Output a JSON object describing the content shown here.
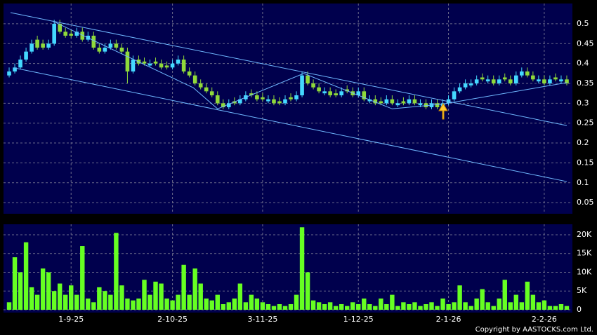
{
  "chart_data": [
    {
      "type": "candlestick",
      "up_color": "#44d8ff",
      "down_color": "#8fd93a",
      "line_color": "#6fb8ff",
      "background": "#00004d",
      "grid": true,
      "xlim": [
        -1,
        100
      ],
      "xticks": [
        11,
        29,
        45,
        62,
        78,
        95
      ],
      "ylim": [
        0.022,
        0.551
      ],
      "yticks": [
        0.05,
        0.1,
        0.15,
        0.2,
        0.25,
        0.3,
        0.35,
        0.4,
        0.45,
        0.5
      ],
      "open": [
        0.37,
        0.38,
        0.39,
        0.41,
        0.43,
        0.46,
        0.45,
        0.44,
        0.45,
        0.5,
        0.48,
        0.475,
        0.47,
        0.48,
        0.46,
        0.47,
        0.44,
        0.43,
        0.44,
        0.45,
        0.44,
        0.43,
        0.38,
        0.41,
        0.405,
        0.395,
        0.405,
        0.4,
        0.395,
        0.39,
        0.4,
        0.41,
        0.38,
        0.37,
        0.35,
        0.34,
        0.33,
        0.32,
        0.3,
        0.29,
        0.305,
        0.3,
        0.31,
        0.325,
        0.32,
        0.315,
        0.305,
        0.31,
        0.305,
        0.3,
        0.315,
        0.31,
        0.32,
        0.37,
        0.35,
        0.34,
        0.325,
        0.33,
        0.325,
        0.32,
        0.335,
        0.33,
        0.32,
        0.33,
        0.305,
        0.31,
        0.305,
        0.3,
        0.31,
        0.295,
        0.305,
        0.3,
        0.31,
        0.295,
        0.3,
        0.29,
        0.3,
        0.29,
        0.3,
        0.31,
        0.33,
        0.34,
        0.345,
        0.35,
        0.365,
        0.355,
        0.36,
        0.35,
        0.365,
        0.36,
        0.35,
        0.37,
        0.38,
        0.37,
        0.355,
        0.36,
        0.35,
        0.365,
        0.355,
        0.36
      ],
      "high": [
        0.39,
        0.4,
        0.42,
        0.44,
        0.46,
        0.47,
        0.46,
        0.46,
        0.51,
        0.51,
        0.49,
        0.485,
        0.49,
        0.49,
        0.48,
        0.48,
        0.45,
        0.45,
        0.46,
        0.46,
        0.45,
        0.44,
        0.42,
        0.42,
        0.415,
        0.41,
        0.415,
        0.41,
        0.405,
        0.41,
        0.42,
        0.42,
        0.39,
        0.38,
        0.36,
        0.35,
        0.34,
        0.33,
        0.31,
        0.31,
        0.315,
        0.32,
        0.33,
        0.335,
        0.33,
        0.325,
        0.32,
        0.32,
        0.315,
        0.32,
        0.325,
        0.33,
        0.38,
        0.38,
        0.36,
        0.35,
        0.34,
        0.34,
        0.335,
        0.34,
        0.345,
        0.34,
        0.34,
        0.34,
        0.32,
        0.32,
        0.315,
        0.32,
        0.32,
        0.31,
        0.315,
        0.32,
        0.32,
        0.31,
        0.31,
        0.31,
        0.31,
        0.31,
        0.32,
        0.34,
        0.35,
        0.36,
        0.36,
        0.37,
        0.375,
        0.37,
        0.37,
        0.37,
        0.375,
        0.37,
        0.38,
        0.39,
        0.39,
        0.38,
        0.37,
        0.37,
        0.37,
        0.375,
        0.37,
        0.37
      ],
      "low": [
        0.365,
        0.375,
        0.385,
        0.405,
        0.425,
        0.435,
        0.435,
        0.435,
        0.445,
        0.475,
        0.465,
        0.465,
        0.465,
        0.455,
        0.455,
        0.435,
        0.425,
        0.425,
        0.435,
        0.435,
        0.425,
        0.35,
        0.375,
        0.395,
        0.395,
        0.39,
        0.395,
        0.385,
        0.385,
        0.385,
        0.395,
        0.375,
        0.365,
        0.345,
        0.335,
        0.325,
        0.315,
        0.295,
        0.285,
        0.285,
        0.295,
        0.295,
        0.305,
        0.315,
        0.305,
        0.305,
        0.3,
        0.295,
        0.295,
        0.295,
        0.305,
        0.305,
        0.315,
        0.345,
        0.335,
        0.325,
        0.32,
        0.315,
        0.315,
        0.315,
        0.325,
        0.315,
        0.315,
        0.305,
        0.3,
        0.295,
        0.295,
        0.295,
        0.295,
        0.29,
        0.295,
        0.295,
        0.295,
        0.29,
        0.285,
        0.285,
        0.285,
        0.285,
        0.295,
        0.305,
        0.325,
        0.335,
        0.34,
        0.345,
        0.355,
        0.35,
        0.345,
        0.345,
        0.355,
        0.345,
        0.345,
        0.365,
        0.365,
        0.355,
        0.35,
        0.345,
        0.345,
        0.355,
        0.35,
        0.345
      ],
      "close": [
        0.38,
        0.39,
        0.41,
        0.43,
        0.45,
        0.44,
        0.44,
        0.45,
        0.5,
        0.48,
        0.47,
        0.47,
        0.48,
        0.46,
        0.47,
        0.44,
        0.43,
        0.44,
        0.45,
        0.44,
        0.43,
        0.38,
        0.41,
        0.4,
        0.4,
        0.4,
        0.4,
        0.39,
        0.39,
        0.4,
        0.41,
        0.38,
        0.37,
        0.35,
        0.34,
        0.33,
        0.32,
        0.3,
        0.29,
        0.3,
        0.3,
        0.31,
        0.32,
        0.32,
        0.31,
        0.31,
        0.31,
        0.3,
        0.3,
        0.31,
        0.31,
        0.32,
        0.37,
        0.35,
        0.34,
        0.33,
        0.33,
        0.32,
        0.32,
        0.33,
        0.33,
        0.32,
        0.33,
        0.31,
        0.31,
        0.3,
        0.3,
        0.31,
        0.3,
        0.3,
        0.3,
        0.31,
        0.3,
        0.3,
        0.29,
        0.3,
        0.29,
        0.3,
        0.31,
        0.33,
        0.34,
        0.35,
        0.35,
        0.36,
        0.36,
        0.36,
        0.35,
        0.36,
        0.36,
        0.35,
        0.37,
        0.38,
        0.37,
        0.36,
        0.36,
        0.35,
        0.36,
        0.36,
        0.36,
        0.35
      ],
      "trendlines": [
        {
          "x": [
            0.25,
            99
          ],
          "y": [
            0.528,
            0.244
          ]
        },
        {
          "x": [
            0.9,
            99
          ],
          "y": [
            0.389,
            0.103
          ]
        },
        {
          "x": [
            7.7,
            32.7,
            37,
            52.3,
            68,
            77,
            99
          ],
          "y": [
            0.507,
            0.339,
            0.286,
            0.375,
            0.286,
            0.298,
            0.352
          ]
        }
      ]
    },
    {
      "type": "bar",
      "color": "#66ff22",
      "background": "#00004d",
      "grid": true,
      "xlim": [
        -1,
        100
      ],
      "xticks": [
        {
          "value": 11,
          "label": "1-9-25"
        },
        {
          "value": 29,
          "label": "2-10-25"
        },
        {
          "value": 45,
          "label": "3-11-25"
        },
        {
          "value": 62,
          "label": "1-12-25"
        },
        {
          "value": 78,
          "label": "2-1-26"
        },
        {
          "value": 95,
          "label": "2-2-26"
        }
      ],
      "ylim": [
        0,
        22800
      ],
      "yticks": [
        0,
        {
          "value": 5000,
          "label": "5K"
        },
        {
          "value": 10000,
          "label": "10K"
        },
        {
          "value": 15000,
          "label": "15K"
        },
        {
          "value": 20000,
          "label": "20K"
        }
      ],
      "values": [
        2000,
        14000,
        10000,
        18000,
        6000,
        4000,
        11000,
        10000,
        5000,
        7000,
        4000,
        6500,
        4000,
        17000,
        3000,
        2000,
        6000,
        5000,
        4000,
        20500,
        6500,
        3000,
        2500,
        3000,
        8000,
        4000,
        7500,
        7000,
        3000,
        2500,
        4000,
        12000,
        4000,
        11000,
        7000,
        3000,
        2500,
        4000,
        1500,
        2000,
        3000,
        7000,
        2000,
        4000,
        3000,
        2000,
        1500,
        1000,
        1500,
        1000,
        1500,
        4000,
        22000,
        10000,
        2500,
        2000,
        1500,
        2000,
        1000,
        1500,
        1000,
        2000,
        1500,
        3000,
        1500,
        1000,
        3000,
        1500,
        4000,
        1000,
        2000,
        1500,
        2000,
        1000,
        1500,
        2000,
        1000,
        3000,
        1500,
        2000,
        6500,
        2000,
        1000,
        3000,
        5500,
        2000,
        1000,
        3000,
        8000,
        2000,
        4000,
        2000,
        7500,
        4000,
        2000,
        2500,
        1000,
        1000,
        1500,
        1000
      ]
    }
  ],
  "footer": "Copyright by AASTOCKS.com Ltd."
}
